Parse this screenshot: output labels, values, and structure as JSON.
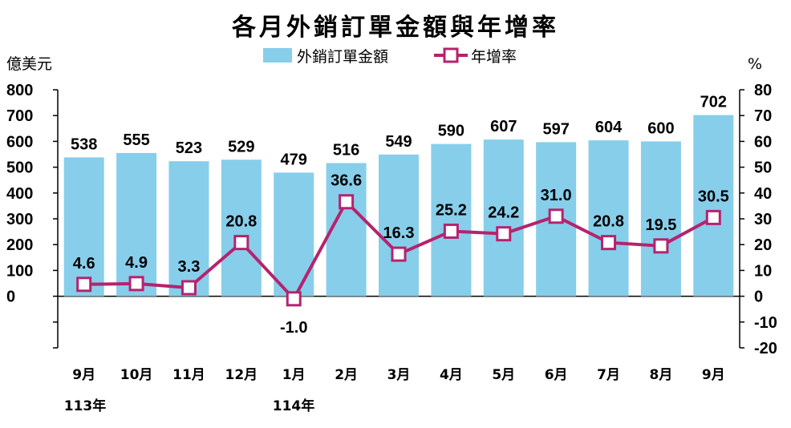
{
  "chart_data": {
    "type": "bar+line",
    "title": "各月外銷訂單金額與年增率",
    "ylabel_left": "億美元",
    "ylabel_right": "%",
    "categories": [
      "9月",
      "10月",
      "11月",
      "12月",
      "1月",
      "2月",
      "3月",
      "4月",
      "5月",
      "6月",
      "7月",
      "8月",
      "9月"
    ],
    "year_labels": [
      "113年",
      "114年"
    ],
    "series": [
      {
        "name": "外銷訂單金額",
        "type": "bar",
        "axis": "left",
        "color": "#87CEEB",
        "values": [
          538,
          555,
          523,
          529,
          479,
          516,
          549,
          590,
          607,
          597,
          604,
          600,
          702
        ]
      },
      {
        "name": "年增率",
        "type": "line",
        "axis": "right",
        "color": "#B5236E",
        "values": [
          4.6,
          4.9,
          3.3,
          20.8,
          -1.0,
          36.6,
          16.3,
          25.2,
          24.2,
          31.0,
          20.8,
          19.5,
          30.5
        ]
      }
    ],
    "y_left": {
      "ylim": [
        -200,
        800
      ],
      "ticks": [
        800,
        700,
        600,
        500,
        400,
        300,
        200,
        100,
        0
      ]
    },
    "y_right": {
      "ylim": [
        -20,
        80
      ],
      "ticks": [
        80,
        70,
        60,
        50,
        40,
        30,
        20,
        10,
        0,
        -10,
        -20
      ]
    },
    "legend_position": "top-center"
  }
}
